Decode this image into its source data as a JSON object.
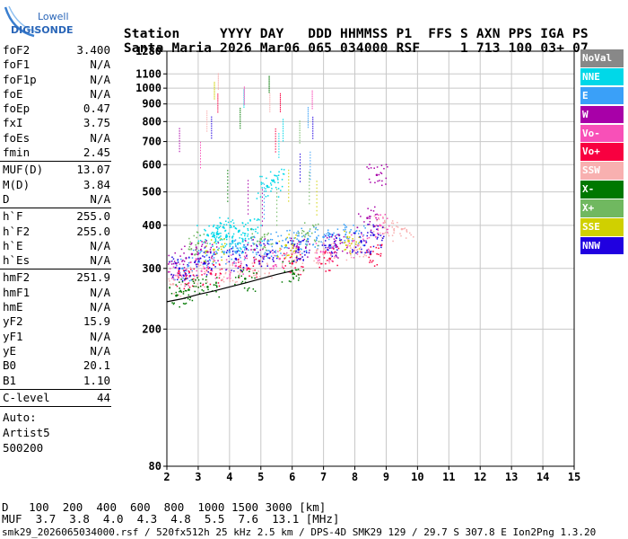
{
  "logo": {
    "line1": "Lowell",
    "line2": "DIGISONDE"
  },
  "header": {
    "row1": [
      "Station",
      "YYYY DAY",
      "DDD HHMMSS P1",
      "FFS S AXN PPS IGA PS"
    ],
    "station": "Santa Maria",
    "date": "2026 Mar06",
    "ddd": "065",
    "time": "034000",
    "p1": "RSF",
    "ffs": "",
    "s": "1",
    "axn": "713",
    "pps": "100",
    "iga": "03+",
    "ps": "07"
  },
  "params": {
    "group1": [
      {
        "label": "foF2",
        "value": "3.400"
      },
      {
        "label": "foF1",
        "value": "N/A"
      },
      {
        "label": "foF1p",
        "value": "N/A"
      },
      {
        "label": "foE",
        "value": "N/A"
      },
      {
        "label": "foEp",
        "value": "0.47"
      },
      {
        "label": "fxI",
        "value": "3.75"
      },
      {
        "label": "foEs",
        "value": "N/A"
      },
      {
        "label": "fmin",
        "value": "2.45"
      }
    ],
    "group2": [
      {
        "label": "MUF(D)",
        "value": "13.07"
      },
      {
        "label": "M(D)",
        "value": "3.84"
      },
      {
        "label": "D",
        "value": "N/A"
      }
    ],
    "group3": [
      {
        "label": "h`F",
        "value": "255.0"
      },
      {
        "label": "h`F2",
        "value": "255.0"
      },
      {
        "label": "h`E",
        "value": "N/A"
      },
      {
        "label": "h`Es",
        "value": "N/A"
      }
    ],
    "group4": [
      {
        "label": "hmF2",
        "value": "251.9"
      },
      {
        "label": "hmF1",
        "value": "N/A"
      },
      {
        "label": "hmE",
        "value": "N/A"
      },
      {
        "label": "yF2",
        "value": "15.9"
      },
      {
        "label": "yF1",
        "value": "N/A"
      },
      {
        "label": "yE",
        "value": "N/A"
      },
      {
        "label": "B0",
        "value": "20.1"
      },
      {
        "label": "B1",
        "value": "1.10"
      }
    ],
    "group5": [
      {
        "label": "C-level",
        "value": "44"
      }
    ],
    "auto": [
      "Auto:",
      "Artist5",
      "500200"
    ]
  },
  "legend": [
    {
      "label": "NoVal",
      "color": "#888888"
    },
    {
      "label": "NNE",
      "color": "#00d8e8"
    },
    {
      "label": "E",
      "color": "#3aa0f8"
    },
    {
      "label": "W",
      "color": "#a800a8"
    },
    {
      "label": "Vo-",
      "color": "#f850b8"
    },
    {
      "label": "Vo+",
      "color": "#f80040"
    },
    {
      "label": "SSW",
      "color": "#f8b0b0"
    },
    {
      "label": "X-",
      "color": "#007800"
    },
    {
      "label": "X+",
      "color": "#70b860"
    },
    {
      "label": "SSE",
      "color": "#d0d000"
    },
    {
      "label": "NNW",
      "color": "#2000e0"
    }
  ],
  "bottom": {
    "row1_label": "D",
    "row1_values": [
      "100",
      "200",
      "400",
      "600",
      "800",
      "1000",
      "1500",
      "3000"
    ],
    "row1_unit": "[km]",
    "row2_label": "MUF",
    "row2_values": [
      "3.7",
      "3.8",
      "4.0",
      "4.3",
      "4.8",
      "5.5",
      "7.6",
      "13.1"
    ],
    "row2_unit": "[MHz]",
    "footer": "smk29_2026065034000.rsf / 520fx512h 25 kHz 2.5 km / DPS-4D SMK29 129 / 29.7 S 307.8 E",
    "footer_right": "Ion2Png 1.3.20"
  },
  "chart_data": {
    "type": "scatter",
    "title": "",
    "xlabel": "",
    "ylabel": "",
    "xlim": [
      2,
      15
    ],
    "ylim": [
      80,
      1280
    ],
    "y_scale": "log",
    "x_ticks": [
      "2",
      "3",
      "4",
      "5",
      "6",
      "7",
      "8",
      "9",
      "10",
      "11",
      "12",
      "13",
      "14",
      "15"
    ],
    "y_ticks": [
      "80",
      "200",
      "300",
      "400",
      "500",
      "600",
      "700",
      "800",
      "900",
      "1000",
      "1100",
      "1280"
    ],
    "grid": true,
    "legend_position": "right",
    "series": [
      {
        "name": "NNE",
        "color": "#00d8e8",
        "points": [
          [
            3.3,
            375
          ],
          [
            3.6,
            380
          ],
          [
            3.9,
            370
          ],
          [
            4.3,
            385
          ],
          [
            4.7,
            390
          ],
          [
            5.2,
            520
          ],
          [
            5.4,
            540
          ],
          [
            3.8,
            395
          ],
          [
            4.1,
            360
          ]
        ]
      },
      {
        "name": "E",
        "color": "#3aa0f8",
        "points": [
          [
            2.5,
            300
          ],
          [
            3.0,
            320
          ],
          [
            3.5,
            330
          ],
          [
            4.0,
            335
          ],
          [
            4.5,
            345
          ],
          [
            5.0,
            350
          ],
          [
            5.5,
            355
          ],
          [
            6.0,
            360
          ],
          [
            6.5,
            365
          ],
          [
            7.0,
            370
          ],
          [
            7.5,
            375
          ],
          [
            8.0,
            380
          ]
        ]
      },
      {
        "name": "W",
        "color": "#a800a8",
        "points": [
          [
            2.3,
            310
          ],
          [
            2.8,
            330
          ],
          [
            3.3,
            335
          ],
          [
            4.8,
            340
          ],
          [
            6.2,
            345
          ],
          [
            7.4,
            350
          ],
          [
            8.4,
            420
          ],
          [
            8.7,
            560
          ]
        ]
      },
      {
        "name": "Vo-",
        "color": "#f850b8",
        "points": [
          [
            2.4,
            290
          ],
          [
            3.2,
            300
          ],
          [
            4.2,
            305
          ],
          [
            5.6,
            320
          ],
          [
            7.0,
            335
          ],
          [
            8.1,
            350
          ],
          [
            8.8,
            400
          ]
        ]
      },
      {
        "name": "Vo+",
        "color": "#f80040",
        "points": [
          [
            2.6,
            280
          ],
          [
            3.4,
            290
          ],
          [
            4.6,
            300
          ],
          [
            6.0,
            310
          ],
          [
            7.2,
            320
          ],
          [
            8.5,
            330
          ]
        ]
      },
      {
        "name": "SSW",
        "color": "#f8b0b0",
        "points": [
          [
            2.2,
            270
          ],
          [
            3.0,
            285
          ],
          [
            4.0,
            295
          ],
          [
            5.0,
            305
          ],
          [
            6.0,
            315
          ],
          [
            7.0,
            330
          ],
          [
            8.0,
            345
          ],
          [
            8.9,
            395
          ],
          [
            9.5,
            390
          ]
        ]
      },
      {
        "name": "X-",
        "color": "#007800",
        "points": [
          [
            2.3,
            250
          ],
          [
            2.7,
            260
          ],
          [
            3.3,
            265
          ],
          [
            4.5,
            280
          ],
          [
            6.0,
            295
          ]
        ]
      },
      {
        "name": "X+",
        "color": "#70b860",
        "points": [
          [
            3.0,
            355
          ],
          [
            5.0,
            365
          ],
          [
            6.5,
            380
          ]
        ]
      },
      {
        "name": "SSE",
        "color": "#d0d000",
        "points": [
          [
            3.5,
            340
          ],
          [
            5.8,
            350
          ],
          [
            7.8,
            360
          ]
        ]
      },
      {
        "name": "NNW",
        "color": "#2000e0",
        "points": [
          [
            2.4,
            300
          ],
          [
            3.2,
            310
          ],
          [
            4.2,
            320
          ],
          [
            5.2,
            330
          ],
          [
            6.2,
            340
          ],
          [
            7.2,
            350
          ],
          [
            8.2,
            360
          ],
          [
            8.6,
            375
          ]
        ]
      }
    ],
    "trace": {
      "name": "black",
      "color": "#000000",
      "points": [
        [
          2.0,
          240
        ],
        [
          2.5,
          245
        ],
        [
          3.0,
          252
        ],
        [
          3.5,
          258
        ],
        [
          4.0,
          265
        ],
        [
          4.5,
          272
        ],
        [
          5.0,
          280
        ],
        [
          5.5,
          288
        ],
        [
          6.0,
          295
        ]
      ]
    }
  }
}
